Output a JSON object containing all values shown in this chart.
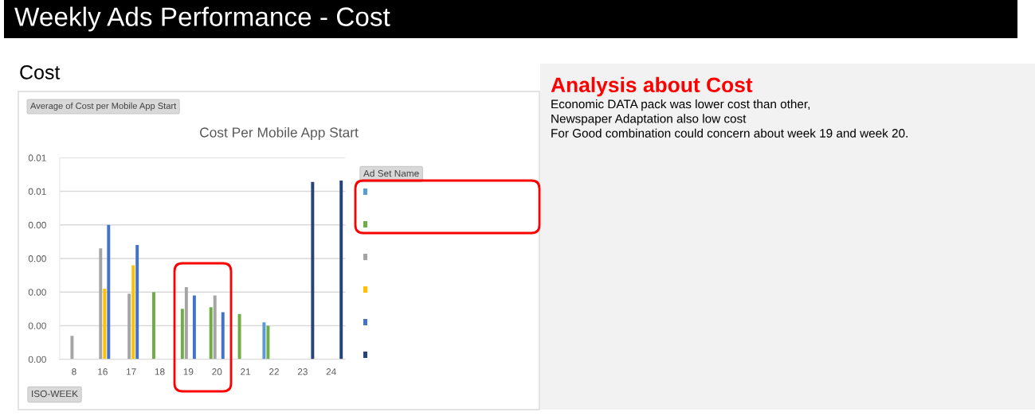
{
  "chart_data": {
    "type": "bar",
    "title": "Cost Per Mobile App Start",
    "xlabel": "ISO-WEEK",
    "ylabel": "Average of Cost per Mobile App Start",
    "legend_title": "Ad Set Name",
    "categories": [
      "8",
      "16",
      "17",
      "18",
      "19",
      "20",
      "21",
      "22",
      "23",
      "24"
    ],
    "series": [
      {
        "color": "#5b9bd5",
        "values": [
          null,
          null,
          null,
          null,
          null,
          null,
          null,
          0.0011,
          null,
          null
        ]
      },
      {
        "color": "#70ad47",
        "values": [
          null,
          null,
          null,
          0.002,
          0.0015,
          0.00155,
          0.00135,
          0.001,
          null,
          null
        ]
      },
      {
        "color": "#a5a5a5",
        "values": [
          0.0007,
          0.0033,
          0.00195,
          null,
          0.00215,
          0.0019,
          null,
          null,
          null,
          null
        ]
      },
      {
        "color": "#ffc000",
        "values": [
          null,
          0.0021,
          0.0028,
          null,
          null,
          null,
          null,
          null,
          null,
          null
        ]
      },
      {
        "color": "#4472c4",
        "values": [
          null,
          0.004,
          0.0034,
          null,
          0.0019,
          0.0014,
          null,
          null,
          null,
          null
        ]
      },
      {
        "color": "#264478",
        "values": [
          null,
          null,
          null,
          null,
          null,
          null,
          null,
          null,
          0.00528,
          0.00532
        ]
      }
    ],
    "ylim": [
      0,
      0.006
    ],
    "yticks": [
      {
        "value": 0,
        "label": "0.00"
      },
      {
        "value": 0.001,
        "label": "0.00"
      },
      {
        "value": 0.002,
        "label": "0.00"
      },
      {
        "value": 0.003,
        "label": "0.00"
      },
      {
        "value": 0.004,
        "label": "0.00"
      },
      {
        "value": 0.005,
        "label": "0.01"
      },
      {
        "value": 0.006,
        "label": "0.01"
      }
    ],
    "grid": "y",
    "annotations": [
      "Weekly Ads Performance - Cost",
      "Cost",
      "Analysis about Cost",
      "Economic DATA pack was lower cost than other,\nNewspaper Adaptation also low cost\nFor Good combination could concern about week 19 and week 20."
    ]
  }
}
